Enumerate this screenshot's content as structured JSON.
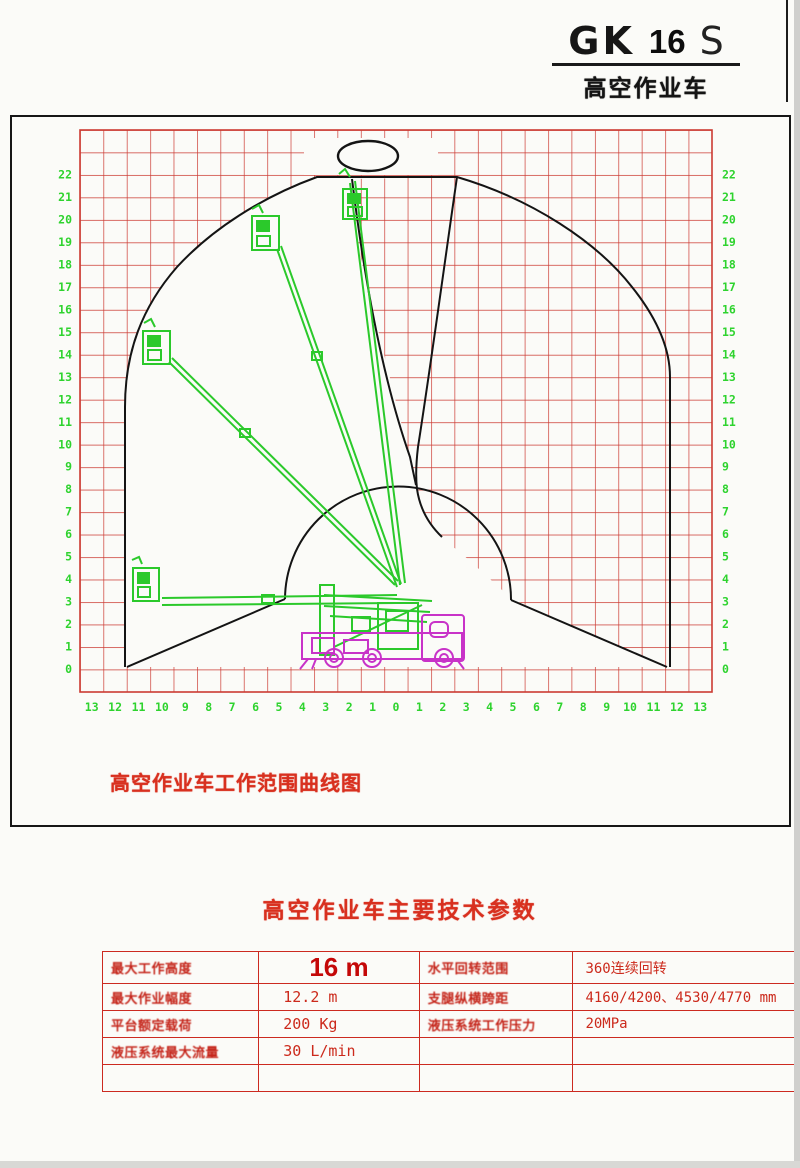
{
  "logo": {
    "model_prefix": "GK",
    "model_number": "16",
    "model_suffix": "S",
    "subtitle": "高空作业车"
  },
  "diagram": {
    "caption": "高空作业车工作范围曲线图",
    "y_axis_labels": [
      "22",
      "21",
      "20",
      "19",
      "18",
      "17",
      "16",
      "15",
      "14",
      "13",
      "12",
      "11",
      "10",
      "9",
      "8",
      "7",
      "6",
      "5",
      "4",
      "3",
      "2",
      "1",
      "0"
    ],
    "x_axis_labels": [
      "13",
      "12",
      "11",
      "10",
      "9",
      "8",
      "7",
      "6",
      "5",
      "4",
      "3",
      "2",
      "1",
      "0",
      "1",
      "2",
      "3",
      "4",
      "5",
      "6",
      "7",
      "8",
      "9",
      "10",
      "11",
      "12",
      "13"
    ],
    "colors": {
      "grid": "#cc3b33",
      "axis_text": "#2ed32e",
      "boom": "#2bc92b",
      "truck": "#c833c8",
      "envelope": "#141414"
    }
  },
  "table": {
    "title": "高空作业车主要技术参数",
    "rows": [
      {
        "label_left": "最大工作高度",
        "value_left": "16 m",
        "emphasis": true,
        "label_right": "水平回转范围",
        "value_right": "360连续回转"
      },
      {
        "label_left": "最大作业幅度",
        "value_left": "12.2 m",
        "emphasis": false,
        "label_right": "支腿纵横跨距",
        "value_right": "4160/4200、4530/4770 mm"
      },
      {
        "label_left": "平台额定载荷",
        "value_left": "200 Kg",
        "emphasis": false,
        "label_right": "液压系统工作压力",
        "value_right": "20MPa"
      },
      {
        "label_left": "液压系统最大流量",
        "value_left": "30 L/min",
        "emphasis": false,
        "label_right": "",
        "value_right": ""
      },
      {
        "label_left": "",
        "value_left": "",
        "emphasis": false,
        "label_right": "",
        "value_right": ""
      }
    ]
  }
}
